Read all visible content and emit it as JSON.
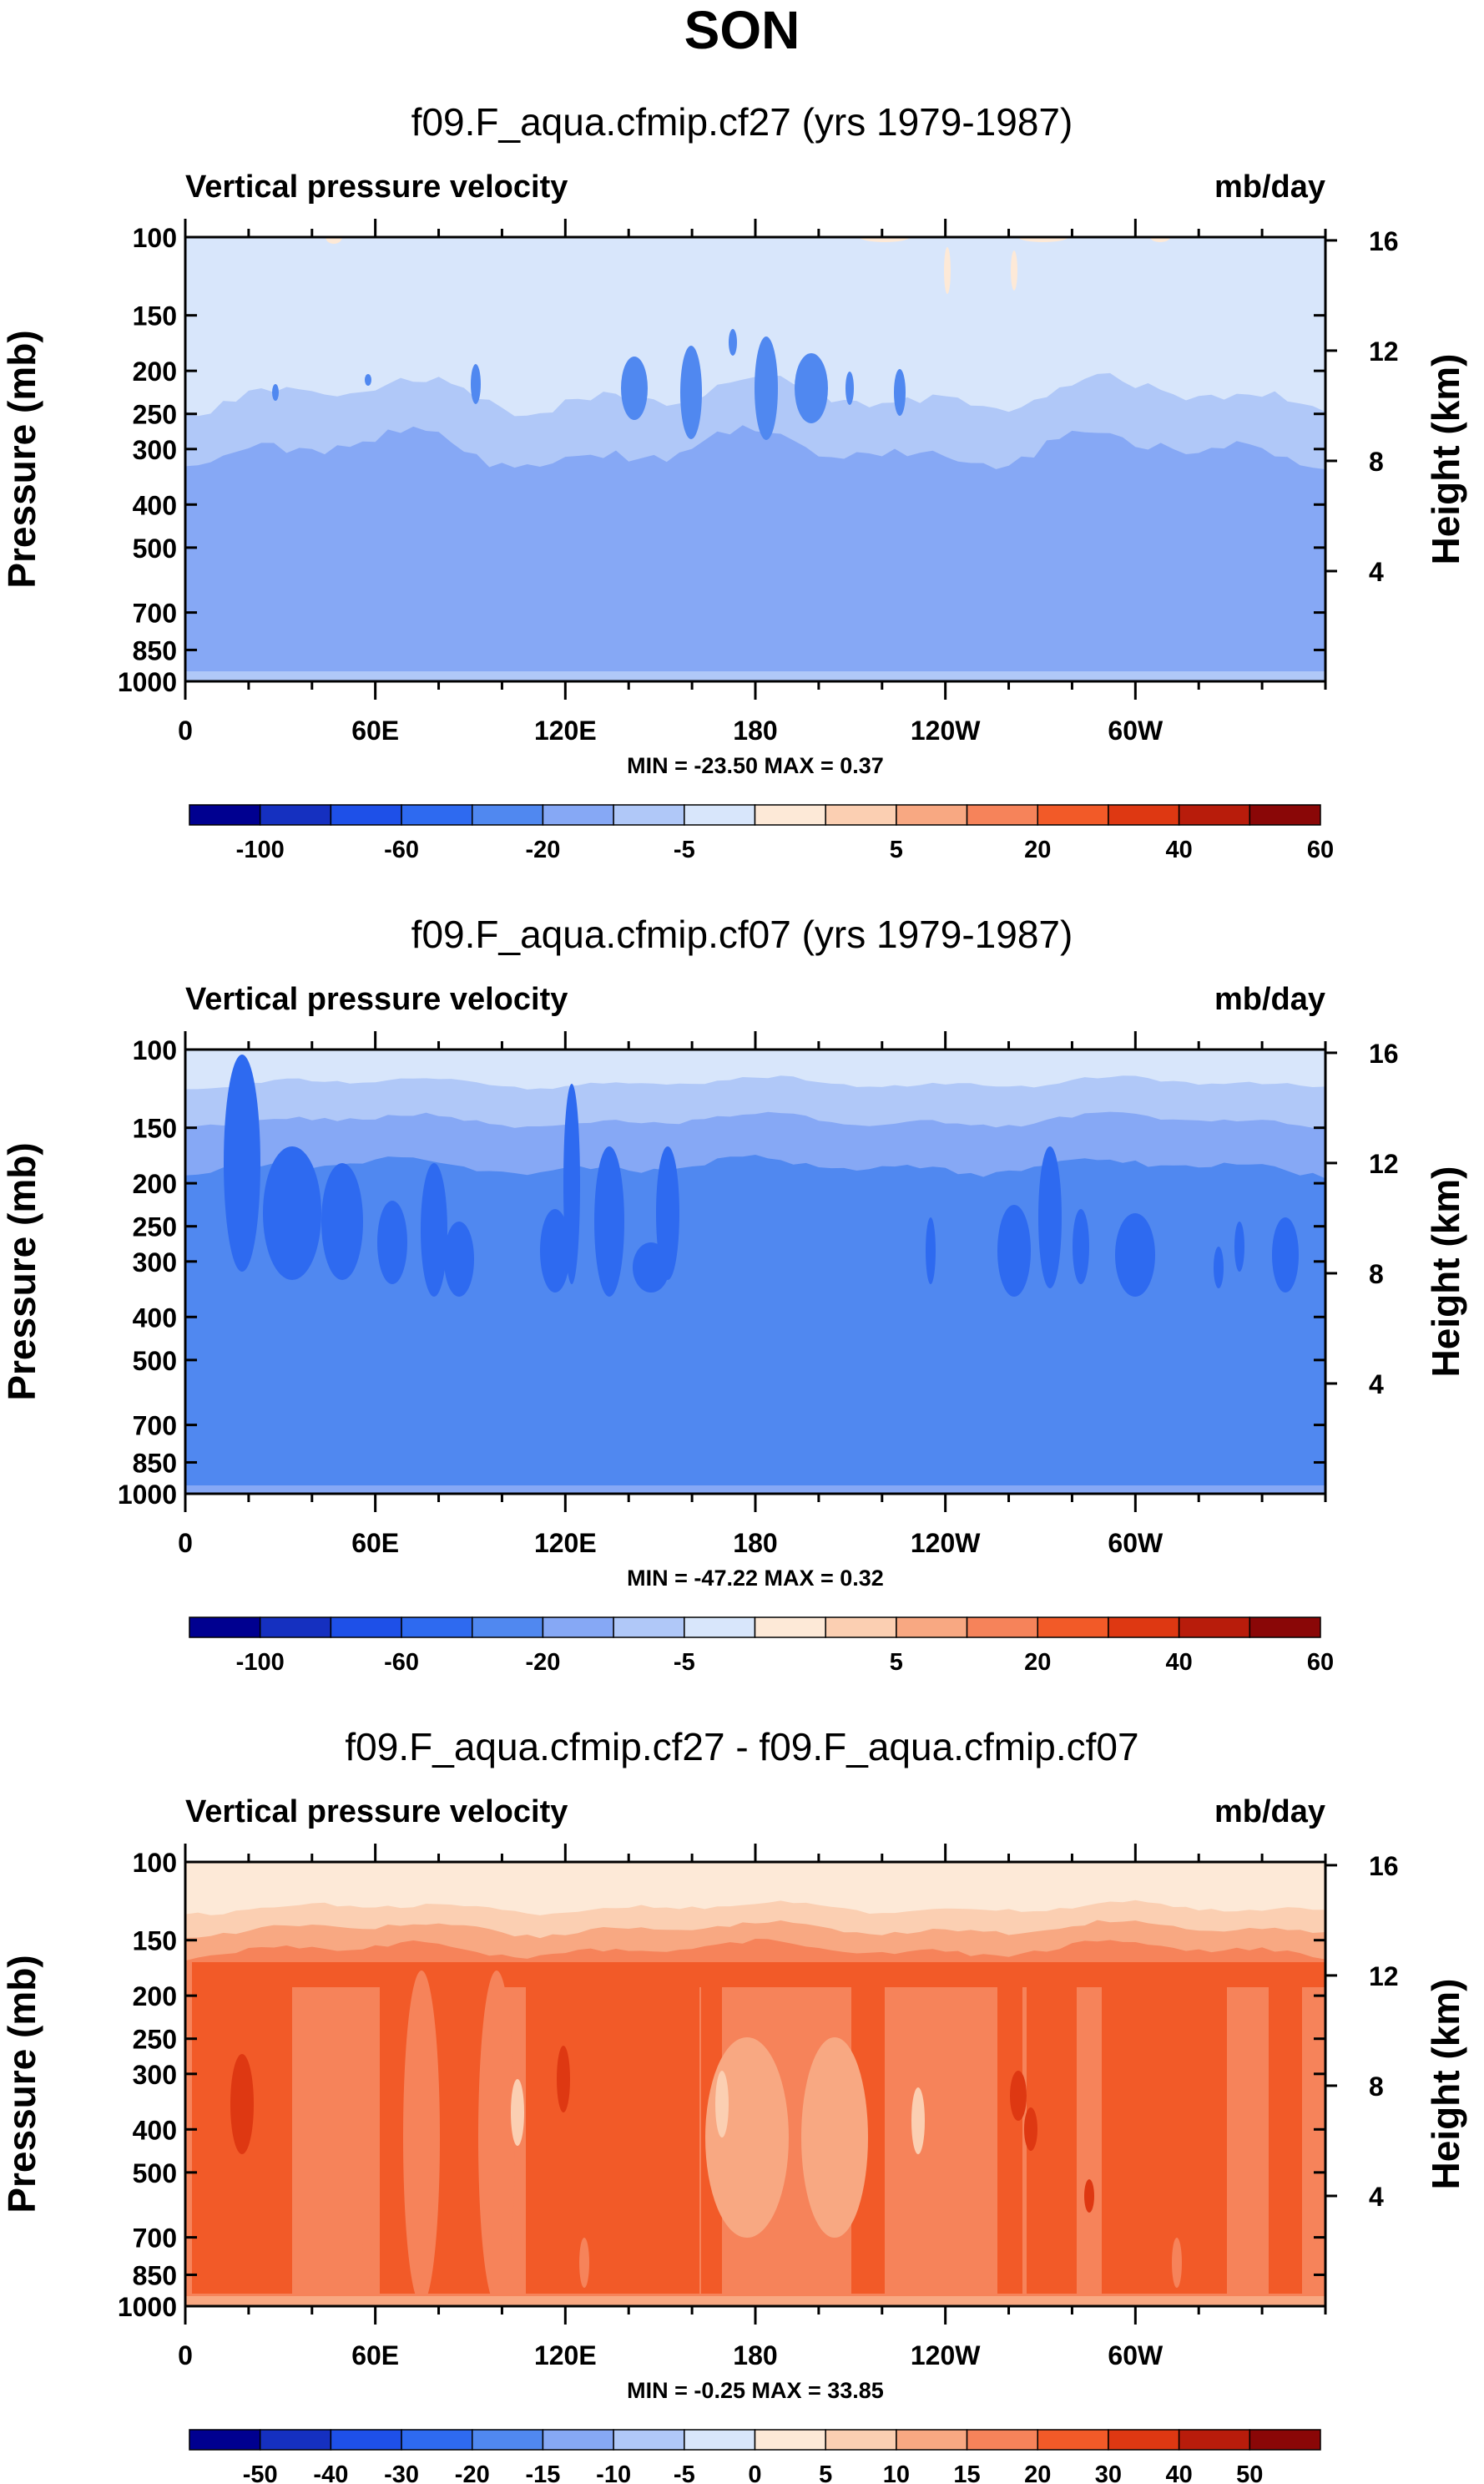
{
  "figure_title": "SON",
  "chart_data": [
    {
      "type": "heatmap",
      "title": "f09.F_aqua.cfmip.cf27 (yrs 1979-1987)",
      "variable": "Vertical pressure velocity",
      "units": "mb/day",
      "ylabel": "Pressure (mb)",
      "y2label": "Height (km)",
      "yticks": [
        100,
        150,
        200,
        250,
        300,
        400,
        500,
        700,
        850,
        1000
      ],
      "ylim": [
        1000,
        100
      ],
      "y2ticks": [
        16,
        12,
        8,
        4
      ],
      "xticks": [
        "0",
        "60E",
        "120E",
        "180",
        "120W",
        "60W"
      ],
      "xlim": [
        0,
        360
      ],
      "stats": "MIN = -23.50  MAX =   0.37",
      "min": -23.5,
      "max": 0.37,
      "colorbar": {
        "colors": [
          "#000090",
          "#1530c0",
          "#1e50e8",
          "#2e6af0",
          "#5088f0",
          "#86a8f5",
          "#b0c8f8",
          "#d8e6fb",
          "#fde9d7",
          "#fbcfb2",
          "#f8a882",
          "#f6835a",
          "#f25a28",
          "#de3812",
          "#b81c0b",
          "#8a0707"
        ],
        "labels": [
          "-100",
          "-60",
          "-20",
          "-5",
          "5",
          "20",
          "40",
          "60"
        ]
      }
    },
    {
      "type": "heatmap",
      "title": "f09.F_aqua.cfmip.cf07 (yrs 1979-1987)",
      "variable": "Vertical pressure velocity",
      "units": "mb/day",
      "ylabel": "Pressure (mb)",
      "y2label": "Height (km)",
      "yticks": [
        100,
        150,
        200,
        250,
        300,
        400,
        500,
        700,
        850,
        1000
      ],
      "ylim": [
        1000,
        100
      ],
      "y2ticks": [
        16,
        12,
        8,
        4
      ],
      "xticks": [
        "0",
        "60E",
        "120E",
        "180",
        "120W",
        "60W"
      ],
      "xlim": [
        0,
        360
      ],
      "stats": "MIN = -47.22  MAX =   0.32",
      "min": -47.22,
      "max": 0.32,
      "colorbar": {
        "colors": [
          "#000090",
          "#1530c0",
          "#1e50e8",
          "#2e6af0",
          "#5088f0",
          "#86a8f5",
          "#b0c8f8",
          "#d8e6fb",
          "#fde9d7",
          "#fbcfb2",
          "#f8a882",
          "#f6835a",
          "#f25a28",
          "#de3812",
          "#b81c0b",
          "#8a0707"
        ],
        "labels": [
          "-100",
          "-60",
          "-20",
          "-5",
          "5",
          "20",
          "40",
          "60"
        ]
      }
    },
    {
      "type": "heatmap",
      "title": "f09.F_aqua.cfmip.cf27 - f09.F_aqua.cfmip.cf07",
      "variable": "Vertical pressure velocity",
      "units": "mb/day",
      "ylabel": "Pressure (mb)",
      "y2label": "Height (km)",
      "yticks": [
        100,
        150,
        200,
        250,
        300,
        400,
        500,
        700,
        850,
        1000
      ],
      "ylim": [
        1000,
        100
      ],
      "y2ticks": [
        16,
        12,
        8,
        4
      ],
      "xticks": [
        "0",
        "60E",
        "120E",
        "180",
        "120W",
        "60W"
      ],
      "xlim": [
        0,
        360
      ],
      "stats": "MIN =  -0.25  MAX = 33.85",
      "min": -0.25,
      "max": 33.85,
      "colorbar": {
        "colors": [
          "#000090",
          "#1530c0",
          "#1e50e8",
          "#2e6af0",
          "#5088f0",
          "#86a8f5",
          "#b0c8f8",
          "#d8e6fb",
          "#fde9d7",
          "#fbcfb2",
          "#f8a882",
          "#f6835a",
          "#f25a28",
          "#de3812",
          "#b81c0b",
          "#8a0707"
        ],
        "labels": [
          "-50",
          "-40",
          "-30",
          "-20",
          "-15",
          "-10",
          "-5",
          "0",
          "5",
          "10",
          "15",
          "20",
          "30",
          "40",
          "50"
        ]
      }
    }
  ]
}
